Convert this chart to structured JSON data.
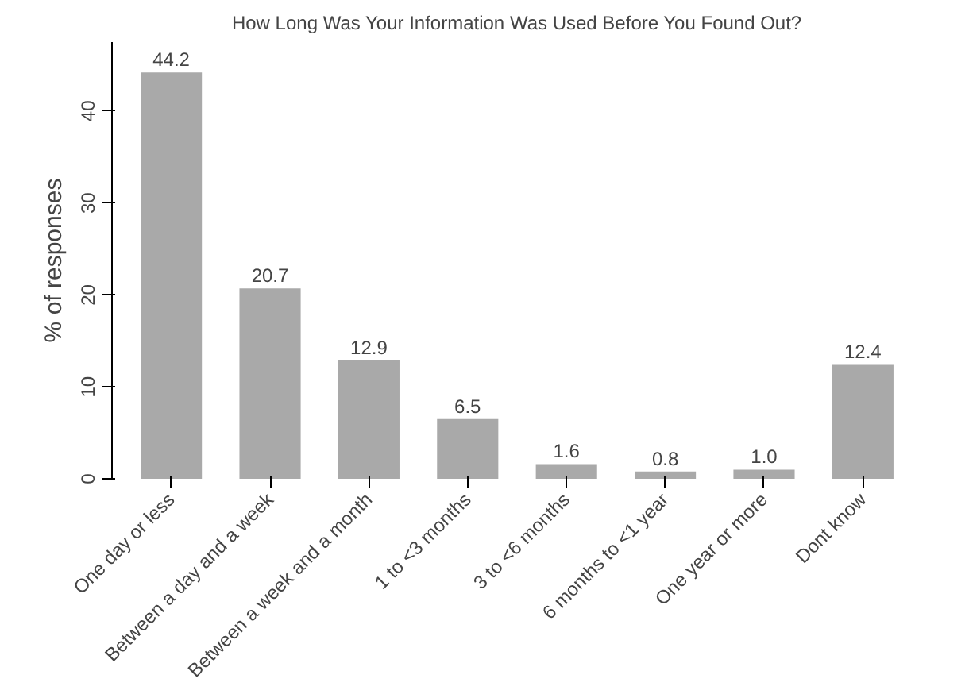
{
  "chart_data": {
    "type": "bar",
    "title": "How Long Was Your Information Was Used Before You Found Out?",
    "ylabel": "% of responses",
    "categories": [
      "One day or less",
      "Between a day and a week",
      "Between a week and a month",
      "1 to <3 months",
      "3 to <6 months",
      "6 months to <1 year",
      "One year or more",
      "Dont know"
    ],
    "values": [
      44.2,
      20.7,
      12.9,
      6.5,
      1.6,
      0.8,
      1.0,
      12.4
    ],
    "value_labels": [
      "44.2",
      "20.7",
      "12.9",
      "6.5",
      "1.6",
      "0.8",
      "1.0",
      "12.4"
    ],
    "color": "#a9a9a9",
    "ylim": [
      0,
      47.5
    ],
    "yticks": [
      0,
      10,
      20,
      30,
      40
    ],
    "grid": false
  }
}
